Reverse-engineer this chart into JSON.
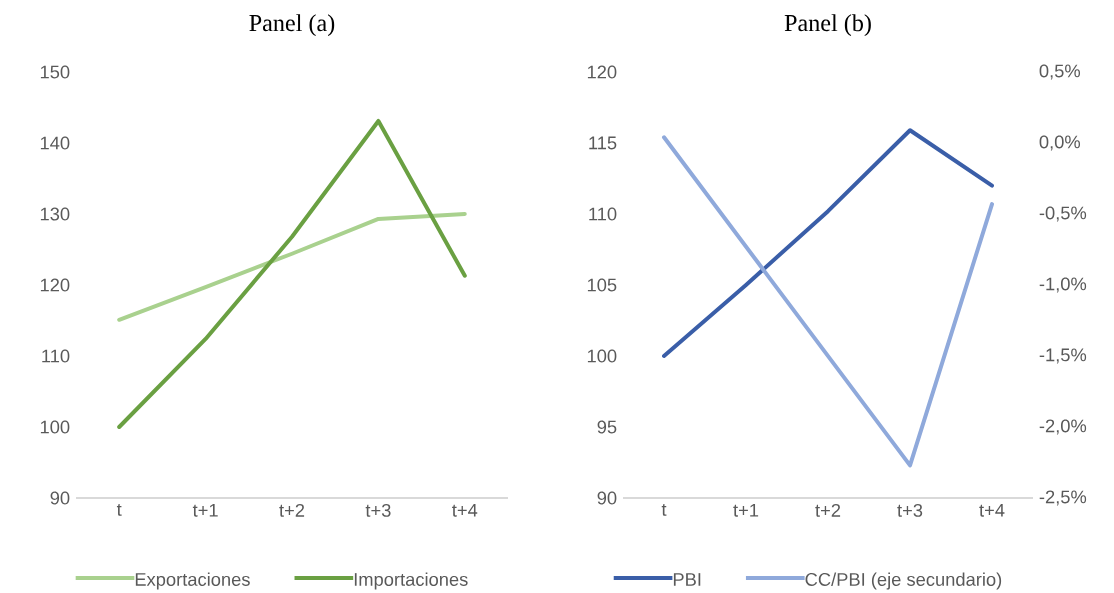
{
  "chart_data": [
    {
      "type": "line",
      "title": "Panel (a)",
      "categories": [
        "t",
        "t+1",
        "t+2",
        "t+3",
        "t+4"
      ],
      "ylim": [
        90,
        150
      ],
      "yticks": [
        90,
        100,
        110,
        120,
        130,
        140,
        150
      ],
      "legend": "bottom",
      "series": [
        {
          "name": "Exportaciones",
          "color": "#a9d18e",
          "values": [
            115.1,
            119.7,
            124.4,
            129.3,
            130.0
          ]
        },
        {
          "name": "Importaciones",
          "color": "#6aa042",
          "values": [
            100,
            112.4,
            126.8,
            143.1,
            121.3
          ]
        }
      ]
    },
    {
      "type": "line",
      "title": "Panel (b)",
      "categories": [
        "t",
        "t+1",
        "t+2",
        "t+3",
        "t+4"
      ],
      "ylim": [
        90,
        120
      ],
      "yticks": [
        90,
        95,
        100,
        105,
        110,
        115,
        120
      ],
      "y2lim": [
        -2.5,
        0.5
      ],
      "y2ticks": [
        {
          "value": -2.5,
          "label": "-2,5%"
        },
        {
          "value": -2.0,
          "label": "-2,0%"
        },
        {
          "value": -1.5,
          "label": "-1,5%"
        },
        {
          "value": -1.0,
          "label": "-1,0%"
        },
        {
          "value": -0.5,
          "label": "-0,5%"
        },
        {
          "value": 0.0,
          "label": "0,0%"
        },
        {
          "value": 0.5,
          "label": "0,5%"
        }
      ],
      "legend": "bottom",
      "series": [
        {
          "name": "PBI",
          "color": "#3a5ea8",
          "values": [
            100,
            105.0,
            110.2,
            115.9,
            112.0
          ]
        },
        {
          "name": "CC/PBI (eje secundario)",
          "color": "#8fa9db",
          "axis": "y2",
          "values": [
            0.04,
            -0.73,
            -1.5,
            -2.27,
            -0.43
          ]
        }
      ]
    }
  ]
}
